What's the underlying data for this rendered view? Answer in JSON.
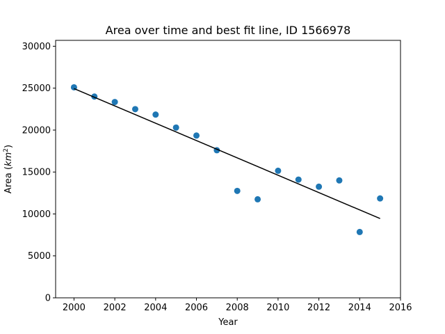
{
  "chart_data": {
    "type": "scatter",
    "title": "Area over time and best fit line, ID 1566978",
    "xlabel": "Year",
    "ylabel_prefix": "Area (",
    "ylabel_unit": "km",
    "ylabel_exp": "2",
    "ylabel_suffix": ")",
    "xlim": [
      1999.1,
      2016
    ],
    "ylim": [
      0,
      30700
    ],
    "x_ticks": [
      2000,
      2002,
      2004,
      2006,
      2008,
      2010,
      2012,
      2014,
      2016
    ],
    "y_ticks": [
      0,
      5000,
      10000,
      15000,
      20000,
      25000,
      30000
    ],
    "grid": false,
    "legend": "none",
    "series": [
      {
        "type": "scatter",
        "color": "#1f77b4",
        "x": [
          2000,
          2001,
          2002,
          2003,
          2004,
          2005,
          2006,
          2007,
          2008,
          2009,
          2010,
          2011,
          2012,
          2013,
          2014,
          2015
        ],
        "y": [
          25100,
          24000,
          23350,
          22500,
          21850,
          20300,
          19350,
          17600,
          12750,
          11750,
          15150,
          14100,
          13250,
          14000,
          7850,
          11850
        ]
      },
      {
        "type": "line",
        "color": "#000000",
        "x": [
          2000,
          2015
        ],
        "y": [
          24950,
          9450
        ]
      }
    ]
  }
}
